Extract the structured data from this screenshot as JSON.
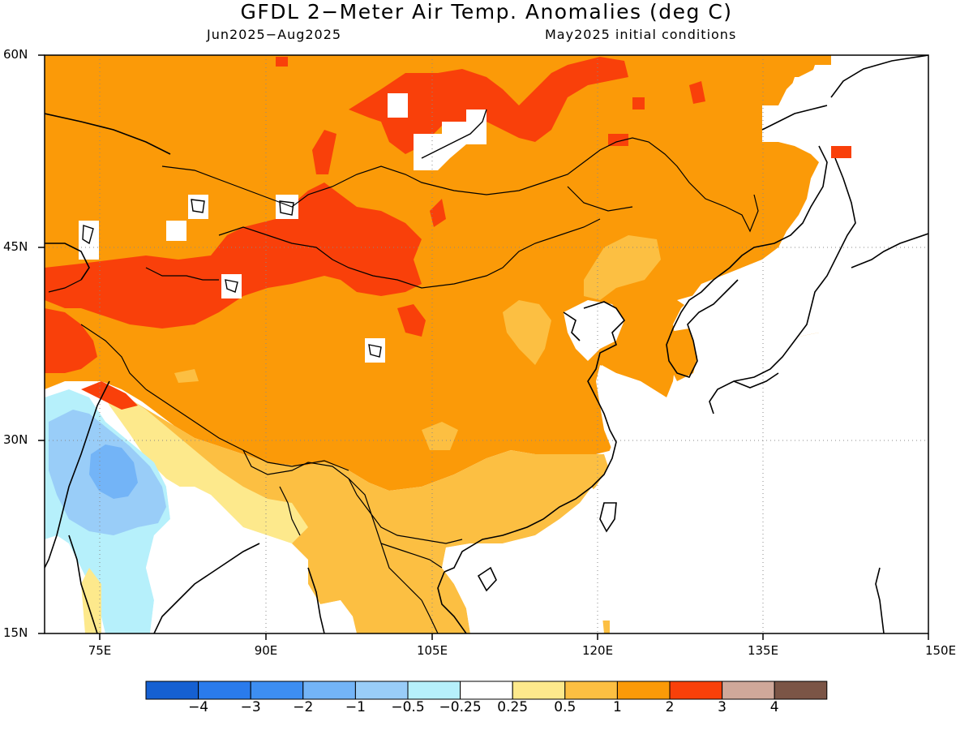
{
  "title": "GFDL 2−Meter Air Temp. Anomalies (deg C)",
  "subtitle_left": "Jun2025−Aug2025",
  "subtitle_right": "May2025 initial conditions",
  "map": {
    "type": "filled-contour-map",
    "lat_range": [
      15,
      60
    ],
    "lon_range": [
      70,
      150
    ],
    "lat_labels": [
      "60N",
      "45N",
      "30N",
      "15N"
    ],
    "lon_labels": [
      "75E",
      "90E",
      "105E",
      "120E",
      "135E",
      "150E"
    ],
    "gridlines": "dotted",
    "coastlines": true,
    "country_borders": true
  },
  "colorbar": {
    "labels": [
      "−4",
      "−3",
      "−2",
      "−1",
      "−0.5",
      "−0.25",
      "0.25",
      "0.5",
      "1",
      "2",
      "3",
      "4"
    ],
    "colors": [
      "#1560d2",
      "#2a7bec",
      "#3d8ef2",
      "#73b4f7",
      "#99cdf8",
      "#b6f0fb",
      "#ffffff",
      "#fde98c",
      "#fcbf42",
      "#fb9a08",
      "#f9400a",
      "#cfa89a",
      "#7b5546"
    ]
  }
}
